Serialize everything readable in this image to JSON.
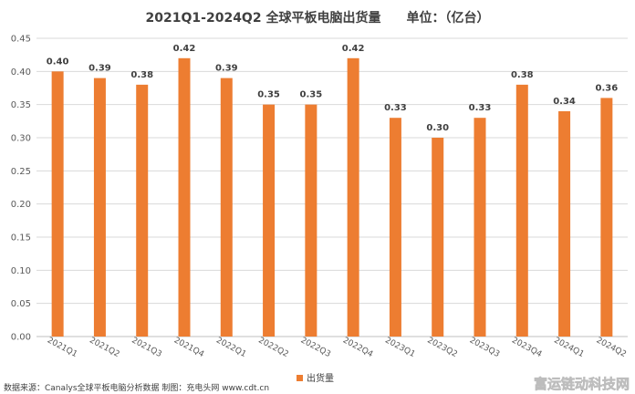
{
  "chart_data": {
    "type": "bar",
    "title": "2021Q1-2024Q2 全球平板电脑出货量　　单位：（亿台）",
    "categories": [
      "2021Q1",
      "2021Q2",
      "2021Q3",
      "2021Q4",
      "2022Q1",
      "2022Q2",
      "2022Q3",
      "2022Q4",
      "2023Q1",
      "2023Q2",
      "2023Q3",
      "2023Q4",
      "2024Q1",
      "2024Q2"
    ],
    "series": [
      {
        "name": "出货量",
        "values": [
          0.4,
          0.39,
          0.38,
          0.42,
          0.39,
          0.35,
          0.35,
          0.42,
          0.33,
          0.3,
          0.33,
          0.38,
          0.34,
          0.36
        ],
        "labels": [
          "0.40",
          "0.39",
          "0.38",
          "0.42",
          "0.39",
          "0.35",
          "0.35",
          "0.42",
          "0.33",
          "0.30",
          "0.33",
          "0.38",
          "0.34",
          "0.36"
        ]
      }
    ],
    "ylim": [
      0,
      0.45
    ],
    "yticks": [
      "0.00",
      "0.05",
      "0.10",
      "0.15",
      "0.20",
      "0.25",
      "0.30",
      "0.35",
      "0.40",
      "0.45"
    ],
    "grid": true,
    "legend": "bottom-center",
    "xlabel": "",
    "ylabel": ""
  },
  "colors": {
    "bar": "#ED7D31",
    "grid": "#D9D9D9",
    "axis": "#BFBFBF"
  },
  "source": "数据来源：Canalys全球平板电脑分析数据  制图：充电头网 www.cdt.cn",
  "watermark": "富运链动科技网"
}
